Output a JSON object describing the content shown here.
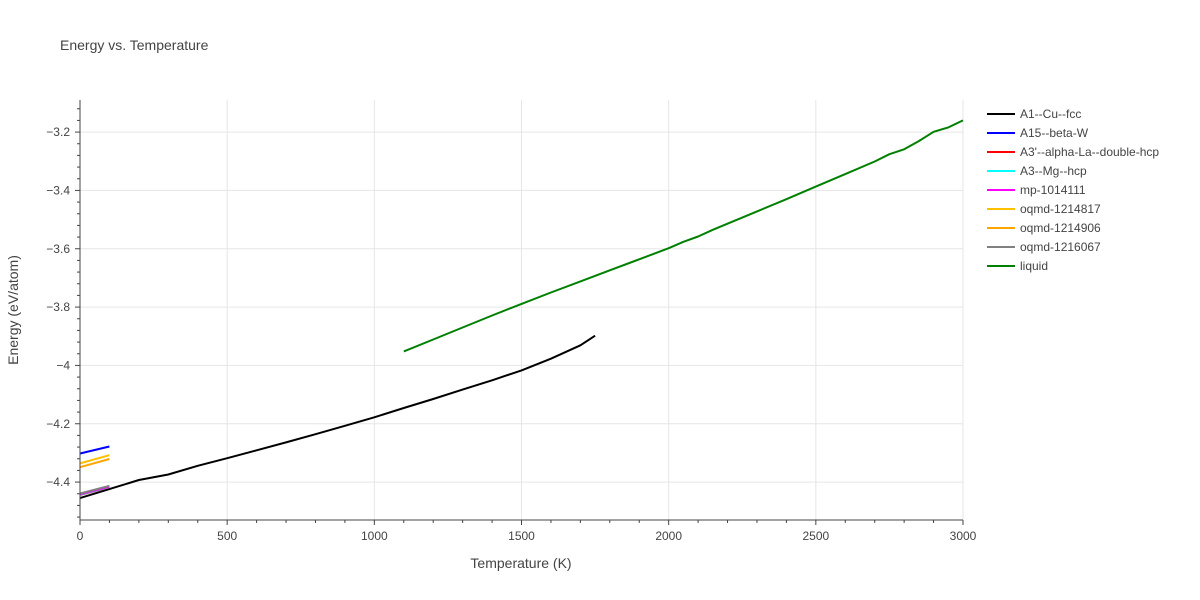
{
  "chart_data": {
    "type": "line",
    "title": "Energy vs. Temperature",
    "xlabel": "Temperature (K)",
    "ylabel": "Energy (eV/atom)",
    "xlim": [
      0,
      3000
    ],
    "ylim": [
      -4.53,
      -3.09
    ],
    "x_ticks": [
      0,
      500,
      1000,
      1500,
      2000,
      2500,
      3000
    ],
    "y_ticks": [
      -4.4,
      -4.2,
      -4.0,
      -3.8,
      -3.6,
      -3.4,
      -3.2
    ],
    "x_tick_labels": [
      "0",
      "500",
      "1000",
      "1500",
      "2000",
      "2500",
      "3000"
    ],
    "y_tick_labels": [
      "−4.4",
      "−4.2",
      "−4",
      "−3.8",
      "−3.6",
      "−3.4",
      "−3.2"
    ],
    "grid": true,
    "legend_position": "right",
    "series": [
      {
        "name": "A1--Cu--fcc",
        "color": "#000000",
        "x": [
          0,
          100,
          200,
          300,
          400,
          500,
          600,
          700,
          800,
          900,
          1000,
          1100,
          1200,
          1300,
          1400,
          1500,
          1600,
          1700,
          1750
        ],
        "y": [
          -4.455,
          -4.424,
          -4.393,
          -4.374,
          -4.344,
          -4.318,
          -4.291,
          -4.264,
          -4.236,
          -4.207,
          -4.178,
          -4.146,
          -4.115,
          -4.083,
          -4.051,
          -4.017,
          -3.977,
          -3.931,
          -3.898
        ]
      },
      {
        "name": "A15--beta-W",
        "color": "#0000ff",
        "x": [
          0,
          100
        ],
        "y": [
          -4.302,
          -4.278
        ]
      },
      {
        "name": "A3'--alpha-La--double-hcp",
        "color": "#ff0000",
        "x": [
          0,
          100
        ],
        "y": [
          -4.444,
          -4.418
        ]
      },
      {
        "name": "A3--Mg--hcp",
        "color": "#00ffff",
        "x": [
          0,
          100
        ],
        "y": [
          -4.443,
          -4.417
        ]
      },
      {
        "name": "mp-1014111",
        "color": "#ff00ff",
        "x": [
          0,
          100
        ],
        "y": [
          -4.442,
          -4.416
        ]
      },
      {
        "name": "oqmd-1214817",
        "color": "#ffc000",
        "x": [
          0,
          100
        ],
        "y": [
          -4.336,
          -4.308
        ]
      },
      {
        "name": "oqmd-1214906",
        "color": "#ffa500",
        "x": [
          0,
          100
        ],
        "y": [
          -4.349,
          -4.321
        ]
      },
      {
        "name": "oqmd-1216067",
        "color": "#808080",
        "x": [
          0,
          100
        ],
        "y": [
          -4.439,
          -4.413
        ]
      },
      {
        "name": "liquid",
        "color": "#008000",
        "x": [
          1100,
          1200,
          1300,
          1400,
          1500,
          1600,
          1700,
          1800,
          1900,
          2000,
          2050,
          2100,
          2150,
          2200,
          2300,
          2400,
          2500,
          2600,
          2700,
          2750,
          2800,
          2850,
          2900,
          2950,
          3000
        ],
        "y": [
          -3.952,
          -3.911,
          -3.87,
          -3.829,
          -3.789,
          -3.75,
          -3.712,
          -3.674,
          -3.636,
          -3.598,
          -3.576,
          -3.558,
          -3.535,
          -3.514,
          -3.472,
          -3.43,
          -3.387,
          -3.344,
          -3.301,
          -3.276,
          -3.259,
          -3.231,
          -3.199,
          -3.184,
          -3.16
        ]
      }
    ]
  }
}
